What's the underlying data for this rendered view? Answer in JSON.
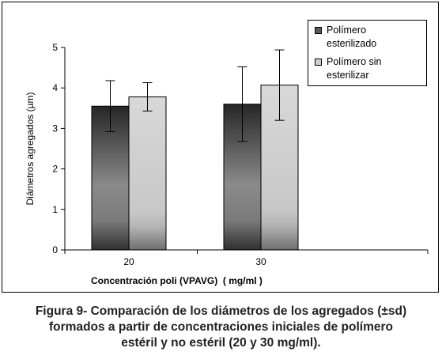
{
  "chart_data": {
    "type": "bar",
    "categories": [
      "20",
      "30"
    ],
    "series": [
      {
        "name": "Polímero esterilizado",
        "values": [
          3.55,
          3.6
        ],
        "error": [
          0.63,
          0.92
        ],
        "color": "#4d4d4d"
      },
      {
        "name": "Polímero sin esterilizar",
        "values": [
          3.78,
          4.07
        ],
        "error": [
          0.35,
          0.87
        ],
        "color": "#d0d0d0"
      }
    ],
    "title": "",
    "xlabel": "Concentración poli (VPAVG)  ( mg/ml )",
    "ylabel": "Diámetros agregados (µm)",
    "ylim": [
      0,
      5
    ],
    "yticks": [
      "0",
      "1",
      "2",
      "3",
      "4",
      "5"
    ],
    "grid": false,
    "legend_position": "top-right"
  },
  "legend": {
    "items": [
      {
        "label_line1": "Polímero",
        "label_line2": "esterilizado"
      },
      {
        "label_line1": "Polímero sin",
        "label_line2": "esterilizar"
      }
    ]
  },
  "caption": {
    "line1": "Figura 9- Comparación de los diámetros de los agregados (±sd)",
    "line2": "formados a partir de concentraciones iniciales de polímero",
    "line3": "estéril y no estéril (20 y 30 mg/ml)."
  }
}
